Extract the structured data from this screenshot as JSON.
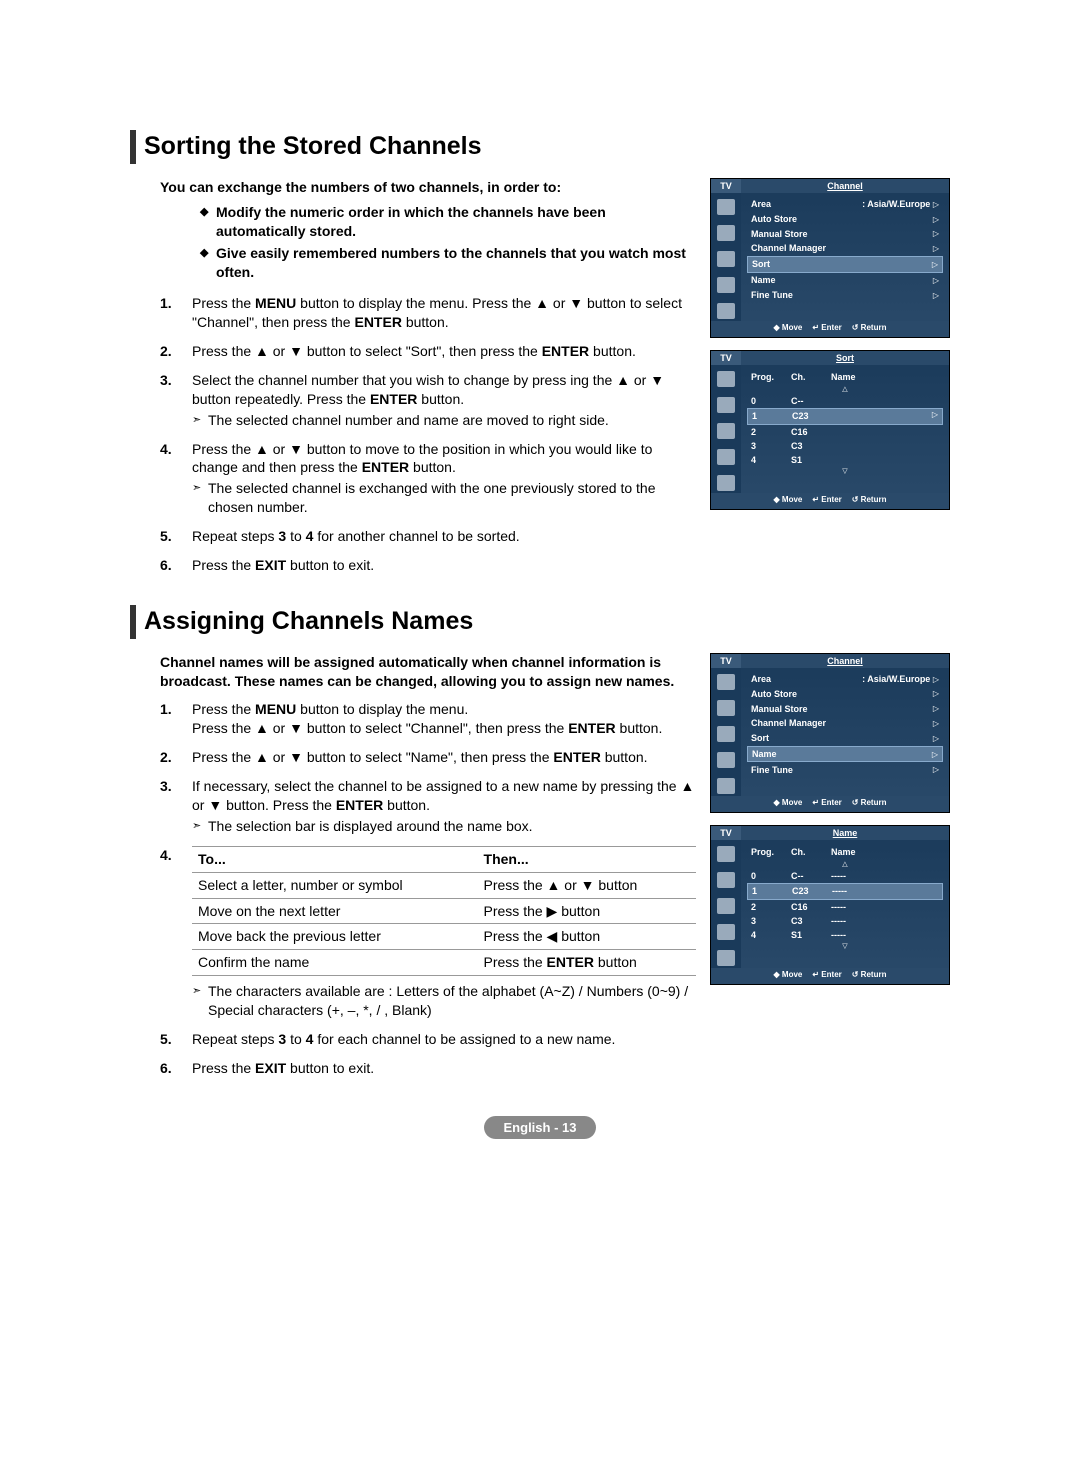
{
  "section1": {
    "title": "Sorting the Stored Channels",
    "intro": "You can exchange the numbers of two channels, in order to:",
    "bullets": [
      "Modify the numeric order in which the channels have been automatically stored.",
      "Give easily remembered numbers to the channels that you watch most often."
    ],
    "steps": {
      "s1a": "Press the ",
      "s1b": "MENU",
      "s1c": " button to display the menu.  Press the ▲ or ▼ button to select \"Channel\", then press the ",
      "s1d": "ENTER",
      "s1e": " button.",
      "s2a": "Press the ▲ or ▼ button to select \"Sort\", then press the ",
      "s2b": "ENTER",
      "s2c": " button.",
      "s3a": "Select the channel number that you wish to change by press ing the ▲ or ▼ button repeatedly. Press the ",
      "s3b": "ENTER",
      "s3c": " button.",
      "s3sub": "The selected channel number and name are moved to right side.",
      "s4a": "Press the ▲ or ▼ button to move to the position in which you would like to change and then press the ",
      "s4b": "ENTER",
      "s4c": " button.",
      "s4sub": "The selected channel is exchanged with the one previously stored to the chosen number.",
      "s5a": "Repeat steps ",
      "s5b": "3",
      "s5c": " to ",
      "s5d": "4",
      "s5e": " for another channel to be sorted.",
      "s6a": "Press the ",
      "s6b": "EXIT",
      "s6c": " button to exit."
    }
  },
  "section2": {
    "title": "Assigning Channels Names",
    "intro": "Channel names will be assigned automatically when channel information is broadcast. These names can be changed, allowing you to assign new names.",
    "steps": {
      "s1a": "Press the ",
      "s1b": "MENU",
      "s1c": " button to display the menu.",
      "s1d": "Press the ▲ or ▼ button to select \"Channel\", then press the ",
      "s1e": "ENTER",
      "s1f": " button.",
      "s2a": "Press the ▲ or ▼ button to select \"Name\", then press the ",
      "s2b": "ENTER",
      "s2c": " button.",
      "s3a": "If necessary, select the channel to be assigned to a new name by pressing the ▲ or ▼ button. Press the ",
      "s3b": "ENTER",
      "s3c": " button.",
      "s3sub": "The selection bar is displayed around the name box.",
      "s4sub1": "The characters available are : Letters of the alphabet (A~Z) / Numbers (0~9) / Special characters (+, –, *, / , Blank)",
      "s5a": "Repeat steps ",
      "s5b": "3",
      "s5c": " to ",
      "s5d": "4",
      "s5e": " for each channel to be assigned to a new name.",
      "s6a": "Press the ",
      "s6b": "EXIT",
      "s6c": " button to exit."
    },
    "table": {
      "h1": "To...",
      "h2": "Then...",
      "r1c1": "Select a letter, number or symbol",
      "r1c2": "Press the ▲ or ▼ button",
      "r2c1": "Move on the next letter",
      "r2c2": "Press the ▶ button",
      "r3c1": "Move back the previous letter",
      "r3c2": "Press the ◀ button",
      "r4c1": "Confirm the name",
      "r4c2a": "Press the ",
      "r4c2b": "ENTER",
      "r4c2c": " button"
    }
  },
  "tv_channel_menu": {
    "title": "Channel",
    "tv": "TV",
    "items": [
      {
        "label": "Area",
        "value": ": Asia/W.Europe",
        "arrow": "▷"
      },
      {
        "label": "Auto Store",
        "value": "",
        "arrow": "▷"
      },
      {
        "label": "Manual Store",
        "value": "",
        "arrow": "▷"
      },
      {
        "label": "Channel Manager",
        "value": "",
        "arrow": "▷"
      },
      {
        "label": "Sort",
        "value": "",
        "arrow": "▷"
      },
      {
        "label": "Name",
        "value": "",
        "arrow": "▷"
      },
      {
        "label": "Fine Tune",
        "value": "",
        "arrow": "▷"
      }
    ],
    "footer": {
      "move": "Move",
      "enter": "Enter",
      "return": "Return"
    }
  },
  "tv_sort": {
    "title": "Sort",
    "tv": "TV",
    "headers": {
      "prog": "Prog.",
      "ch": "Ch.",
      "name": "Name"
    },
    "rows": [
      {
        "prog": "0",
        "ch": "C--",
        "name": ""
      },
      {
        "prog": "1",
        "ch": "C23",
        "name": ""
      },
      {
        "prog": "2",
        "ch": "C16",
        "name": ""
      },
      {
        "prog": "3",
        "ch": "C3",
        "name": ""
      },
      {
        "prog": "4",
        "ch": "S1",
        "name": ""
      }
    ],
    "selected": 1,
    "footer": {
      "move": "Move",
      "enter": "Enter",
      "return": "Return"
    }
  },
  "tv_name": {
    "title": "Name",
    "tv": "TV",
    "headers": {
      "prog": "Prog.",
      "ch": "Ch.",
      "name": "Name"
    },
    "rows": [
      {
        "prog": "0",
        "ch": "C--",
        "name": "-----"
      },
      {
        "prog": "1",
        "ch": "C23",
        "name": "-----"
      },
      {
        "prog": "2",
        "ch": "C16",
        "name": "-----"
      },
      {
        "prog": "3",
        "ch": "C3",
        "name": "-----"
      },
      {
        "prog": "4",
        "ch": "S1",
        "name": "-----"
      }
    ],
    "selected": 1,
    "footer": {
      "move": "Move",
      "enter": "Enter",
      "return": "Return"
    }
  },
  "tv_channel_menu2_selected": "Name",
  "tv_channel_menu1_selected": "Sort",
  "page_footer": "English - 13",
  "symbols": {
    "updown": "◆",
    "enter_icon": "↵",
    "return_icon": "↺"
  }
}
